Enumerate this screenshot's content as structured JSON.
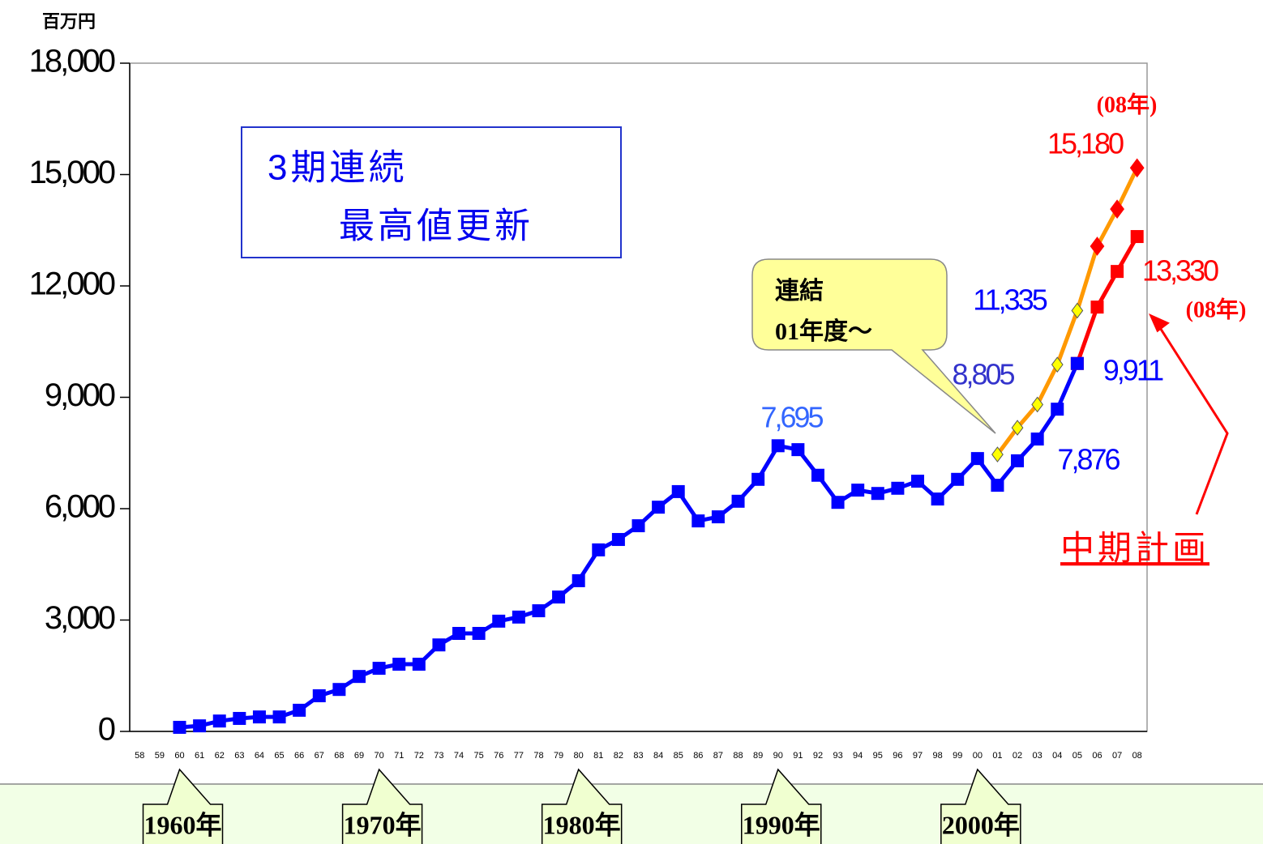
{
  "chart_data": {
    "type": "line",
    "unit_label": "百万円",
    "categories": [
      "58",
      "59",
      "60",
      "61",
      "62",
      "63",
      "64",
      "65",
      "66",
      "67",
      "68",
      "69",
      "70",
      "71",
      "72",
      "73",
      "74",
      "75",
      "76",
      "77",
      "78",
      "79",
      "80",
      "81",
      "82",
      "83",
      "84",
      "85",
      "86",
      "87",
      "88",
      "89",
      "90",
      "91",
      "92",
      "93",
      "94",
      "95",
      "96",
      "97",
      "98",
      "99",
      "00",
      "01",
      "02",
      "03",
      "04",
      "05",
      "06",
      "07",
      "08"
    ],
    "ylim": [
      0,
      18000
    ],
    "yticks": [
      0,
      {
        "value": 3000,
        "label": "3,000"
      },
      {
        "value": 6000,
        "label": "6,000"
      },
      {
        "value": 9000,
        "label": "9,000"
      },
      {
        "value": 12000,
        "label": "12,000"
      },
      {
        "value": 15000,
        "label": "15,000"
      },
      {
        "value": 18000,
        "label": "18,000"
      }
    ],
    "series": [
      {
        "color": "#22ee22",
        "marker": "none",
        "values": [
          null,
          null,
          -300,
          null,
          null,
          null,
          null,
          null,
          null,
          null,
          null,
          null,
          null,
          null,
          null,
          null,
          null,
          null,
          null,
          null,
          null,
          null,
          null,
          null,
          null,
          null,
          null,
          null,
          null,
          null,
          null,
          null,
          null,
          null,
          null,
          null,
          null,
          null,
          null,
          null,
          null,
          null,
          null,
          null,
          null,
          null,
          null,
          null,
          null,
          null,
          13700
        ]
      },
      {
        "color": "#ff0000",
        "marker": "square",
        "values": [
          null,
          null,
          null,
          null,
          null,
          null,
          null,
          null,
          null,
          null,
          null,
          null,
          null,
          null,
          null,
          null,
          null,
          null,
          null,
          null,
          null,
          null,
          null,
          null,
          null,
          null,
          null,
          null,
          null,
          null,
          null,
          null,
          null,
          null,
          null,
          null,
          null,
          null,
          null,
          null,
          null,
          null,
          null,
          null,
          null,
          null,
          null,
          9911,
          11430,
          12390,
          13330
        ],
        "value_labels": [
          null,
          null,
          null,
          null,
          null,
          null,
          null,
          null,
          null,
          null,
          null,
          null,
          null,
          null,
          null,
          null,
          null,
          null,
          null,
          null,
          null,
          null,
          null,
          null,
          null,
          null,
          null,
          null,
          null,
          null,
          null,
          null,
          null,
          null,
          null,
          null,
          null,
          null,
          null,
          null,
          null,
          null,
          null,
          null,
          null,
          null,
          null,
          null,
          null,
          null,
          "13,330"
        ],
        "label_color": "#ff0000"
      },
      {
        "color": "#ff9900",
        "marker": "diamond",
        "values": [
          null,
          null,
          null,
          null,
          null,
          null,
          null,
          null,
          null,
          null,
          null,
          null,
          null,
          null,
          null,
          null,
          null,
          null,
          null,
          null,
          null,
          null,
          null,
          null,
          null,
          null,
          null,
          null,
          null,
          null,
          null,
          null,
          null,
          null,
          null,
          null,
          null,
          null,
          null,
          null,
          null,
          null,
          null,
          7460,
          8180,
          8805,
          9880,
          11335,
          13070,
          14070,
          15180
        ],
        "marker_colors": [
          null,
          null,
          null,
          null,
          null,
          null,
          null,
          null,
          null,
          null,
          null,
          null,
          null,
          null,
          null,
          null,
          null,
          null,
          null,
          null,
          null,
          null,
          null,
          null,
          null,
          null,
          null,
          null,
          null,
          null,
          null,
          null,
          null,
          null,
          null,
          null,
          null,
          null,
          null,
          null,
          null,
          null,
          null,
          "#ffff00",
          "#ffff00",
          "#ffff00",
          "#ffff00",
          "#ffff00",
          "#ff0000",
          "#ff0000",
          "#ff0000"
        ],
        "value_labels": [
          null,
          null,
          null,
          null,
          null,
          null,
          null,
          null,
          null,
          null,
          null,
          null,
          null,
          null,
          null,
          null,
          null,
          null,
          null,
          null,
          null,
          null,
          null,
          null,
          null,
          null,
          null,
          null,
          null,
          null,
          null,
          null,
          null,
          null,
          null,
          null,
          null,
          null,
          null,
          null,
          null,
          null,
          null,
          null,
          null,
          "8,805",
          null,
          "11,335",
          null,
          null,
          "15,180"
        ],
        "label_colors": [
          null,
          null,
          null,
          null,
          null,
          null,
          null,
          null,
          null,
          null,
          null,
          null,
          null,
          null,
          null,
          null,
          null,
          null,
          null,
          null,
          null,
          null,
          null,
          null,
          null,
          null,
          null,
          null,
          null,
          null,
          null,
          null,
          null,
          null,
          null,
          null,
          null,
          null,
          null,
          null,
          null,
          null,
          null,
          null,
          null,
          "#3333cc",
          null,
          "#0000ff",
          null,
          null,
          "#ff0000"
        ]
      },
      {
        "color": "#0000ff",
        "marker": "square",
        "values": [
          null,
          null,
          110,
          150,
          280,
          350,
          390,
          390,
          570,
          960,
          1130,
          1480,
          1700,
          1810,
          1810,
          2330,
          2640,
          2640,
          2970,
          3080,
          3250,
          3620,
          4060,
          4890,
          5170,
          5540,
          6040,
          6460,
          5670,
          5780,
          6200,
          6790,
          7695,
          7590,
          6900,
          6170,
          6500,
          6410,
          6550,
          6740,
          6260,
          6790,
          7350,
          6630,
          7290,
          7876,
          8680,
          9911,
          null,
          null,
          null
        ],
        "value_labels": [
          null,
          null,
          null,
          null,
          null,
          null,
          null,
          null,
          null,
          null,
          null,
          null,
          null,
          null,
          null,
          null,
          null,
          null,
          null,
          null,
          null,
          null,
          null,
          null,
          null,
          null,
          null,
          null,
          null,
          null,
          null,
          null,
          "7,695",
          null,
          null,
          null,
          null,
          null,
          null,
          null,
          null,
          null,
          null,
          null,
          null,
          "7,876",
          null,
          "9,911",
          null,
          null,
          null
        ],
        "label_colors": [
          null,
          null,
          null,
          null,
          null,
          null,
          null,
          null,
          null,
          null,
          null,
          null,
          null,
          null,
          null,
          null,
          null,
          null,
          null,
          null,
          null,
          null,
          null,
          null,
          null,
          null,
          null,
          null,
          null,
          null,
          null,
          null,
          "#3366ff",
          null,
          null,
          null,
          null,
          null,
          null,
          null,
          null,
          null,
          null,
          null,
          null,
          "#0000ff",
          null,
          "#0000ff",
          null,
          null,
          null
        ]
      }
    ],
    "box_text": [
      "3期連続",
      "最高値更新"
    ],
    "callout": [
      "連結",
      "01年度～"
    ],
    "year_notes": [
      "(08年)",
      "(08年)"
    ],
    "plan_label": "中期計画",
    "decades": [
      "1960年",
      "1970年",
      "1980年",
      "1990年",
      "2000年"
    ]
  }
}
